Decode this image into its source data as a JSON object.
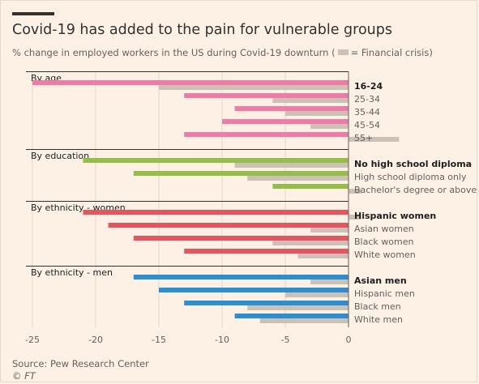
{
  "header": {
    "title": "Covid-19 has added to the pain for vulnerable groups",
    "subtitle_pre": "% change in employed workers in the US during Covid-19 downturn (",
    "subtitle_post": "= Financial crisis)"
  },
  "footer": {
    "source": "Source: Pew Research Center",
    "credit": "© FT"
  },
  "colors": {
    "age": "#f07ba5",
    "education": "#96bc4a",
    "ethnicity_women": "#e35660",
    "ethnicity_men": "#2c8ed0",
    "financial_crisis": "#ccc1b7",
    "background": "#fdf1e6"
  },
  "chart_data": {
    "type": "bar",
    "orientation": "horizontal",
    "xlim": [
      -25,
      0
    ],
    "xticks": [
      "-25",
      "-20",
      "-15",
      "-10",
      "-5",
      "0"
    ],
    "xtick_values": [
      -25,
      -20,
      -15,
      -10,
      -5,
      0
    ],
    "grid": true,
    "legend": "inline in subtitle",
    "series": [
      {
        "name": "Covid-19"
      },
      {
        "name": "Financial crisis"
      }
    ],
    "groups": [
      {
        "label": "By age",
        "color_key": "age",
        "categories": [
          {
            "label": "16-24",
            "bold": true,
            "covid": -25,
            "crisis": -15
          },
          {
            "label": "25-34",
            "bold": false,
            "covid": -13,
            "crisis": -6
          },
          {
            "label": "35-44",
            "bold": false,
            "covid": -9,
            "crisis": -5
          },
          {
            "label": "45-54",
            "bold": false,
            "covid": -10,
            "crisis": -3
          },
          {
            "label": "55+",
            "bold": false,
            "covid": -13,
            "crisis": 4
          }
        ]
      },
      {
        "label": "By education",
        "color_key": "education",
        "categories": [
          {
            "label": "No high school diploma",
            "bold": true,
            "covid": -21,
            "crisis": -9
          },
          {
            "label": "High school diploma only",
            "bold": false,
            "covid": -17,
            "crisis": -8
          },
          {
            "label": "Bachelor's degree or above",
            "bold": false,
            "covid": -6,
            "crisis": 1
          }
        ]
      },
      {
        "label": "By ethnicity - women",
        "color_key": "ethnicity_women",
        "categories": [
          {
            "label": "Hispanic women",
            "bold": true,
            "covid": -21,
            "crisis": 1
          },
          {
            "label": "Asian women",
            "bold": false,
            "covid": -19,
            "crisis": -3
          },
          {
            "label": "Black women",
            "bold": false,
            "covid": -17,
            "crisis": -6
          },
          {
            "label": "White women",
            "bold": false,
            "covid": -13,
            "crisis": -4
          }
        ]
      },
      {
        "label": "By ethnicity - men",
        "color_key": "ethnicity_men",
        "categories": [
          {
            "label": "Asian men",
            "bold": true,
            "covid": -17,
            "crisis": -3
          },
          {
            "label": "Hispanic men",
            "bold": false,
            "covid": -15,
            "crisis": -5
          },
          {
            "label": "Black men",
            "bold": false,
            "covid": -13,
            "crisis": -8
          },
          {
            "label": "White men",
            "bold": false,
            "covid": -9,
            "crisis": -7
          }
        ]
      }
    ]
  }
}
